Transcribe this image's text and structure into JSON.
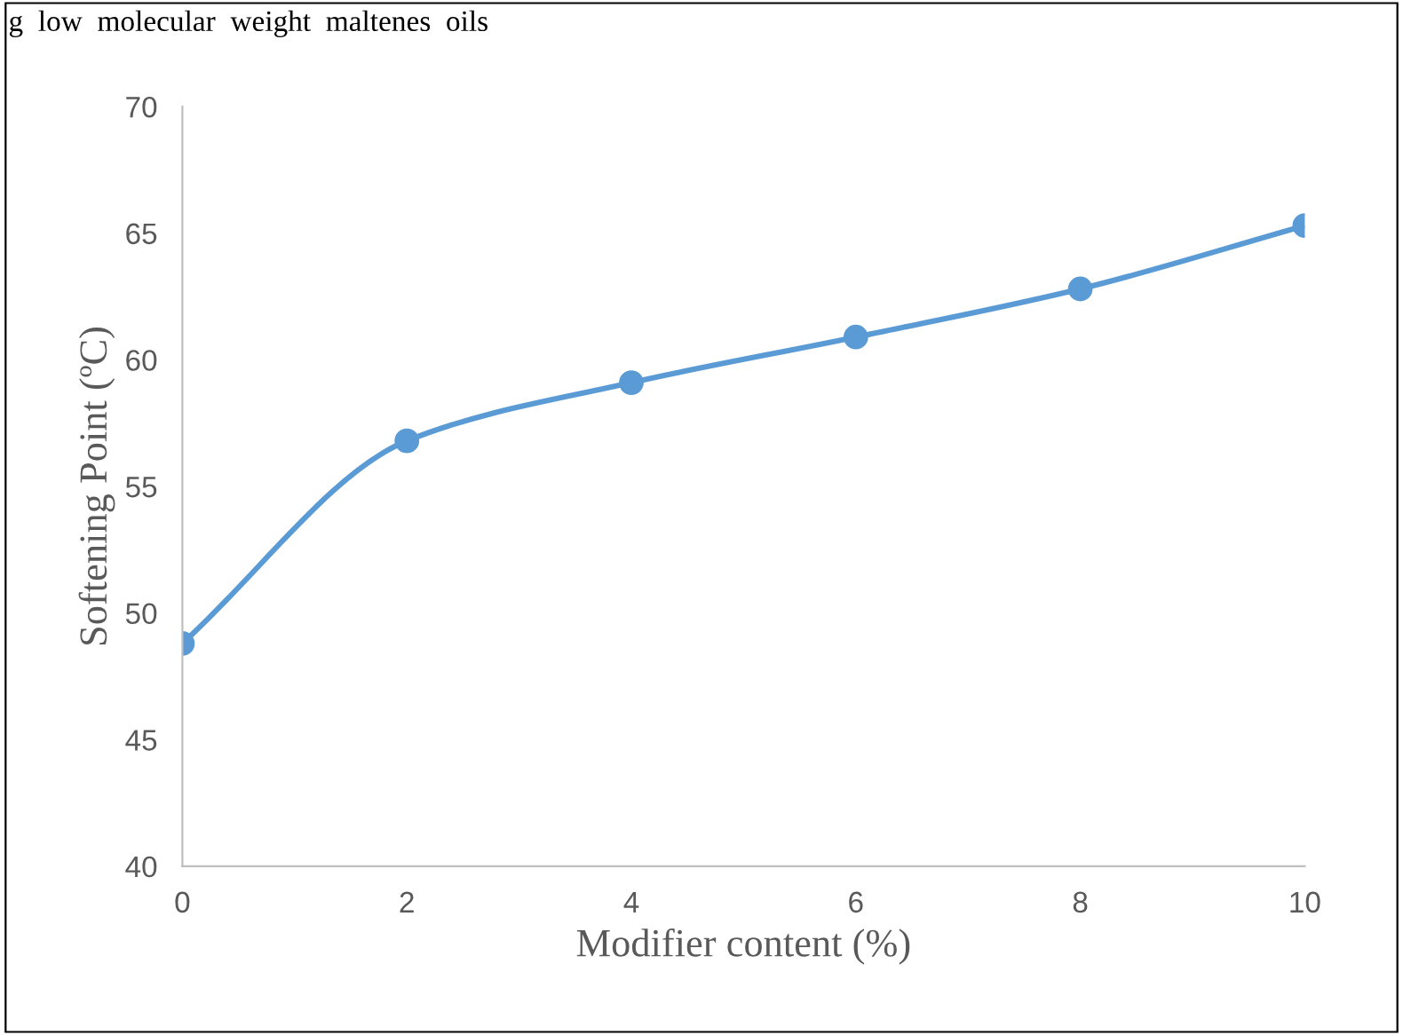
{
  "chart_data": {
    "type": "line",
    "xlabel": "Modifier content (%)",
    "ylabel": "Softening Point (ºC)",
    "annotations": [
      "g  low  molecular  weight  maltenes  oils"
    ],
    "x": [
      0,
      2,
      4,
      6,
      8,
      10
    ],
    "series": [
      {
        "color": "#5b9bd5",
        "values": [
          48.8,
          56.8,
          59.1,
          60.9,
          62.8,
          65.3
        ]
      }
    ],
    "xlim": [
      0,
      10
    ],
    "xticks": [
      0,
      2,
      4,
      6,
      8,
      10
    ],
    "ylim": [
      40,
      70
    ],
    "yticks": [
      40,
      45,
      50,
      55,
      60,
      65,
      70
    ],
    "grid": false,
    "legend": false,
    "marker": "circle",
    "line_style": "solid"
  }
}
